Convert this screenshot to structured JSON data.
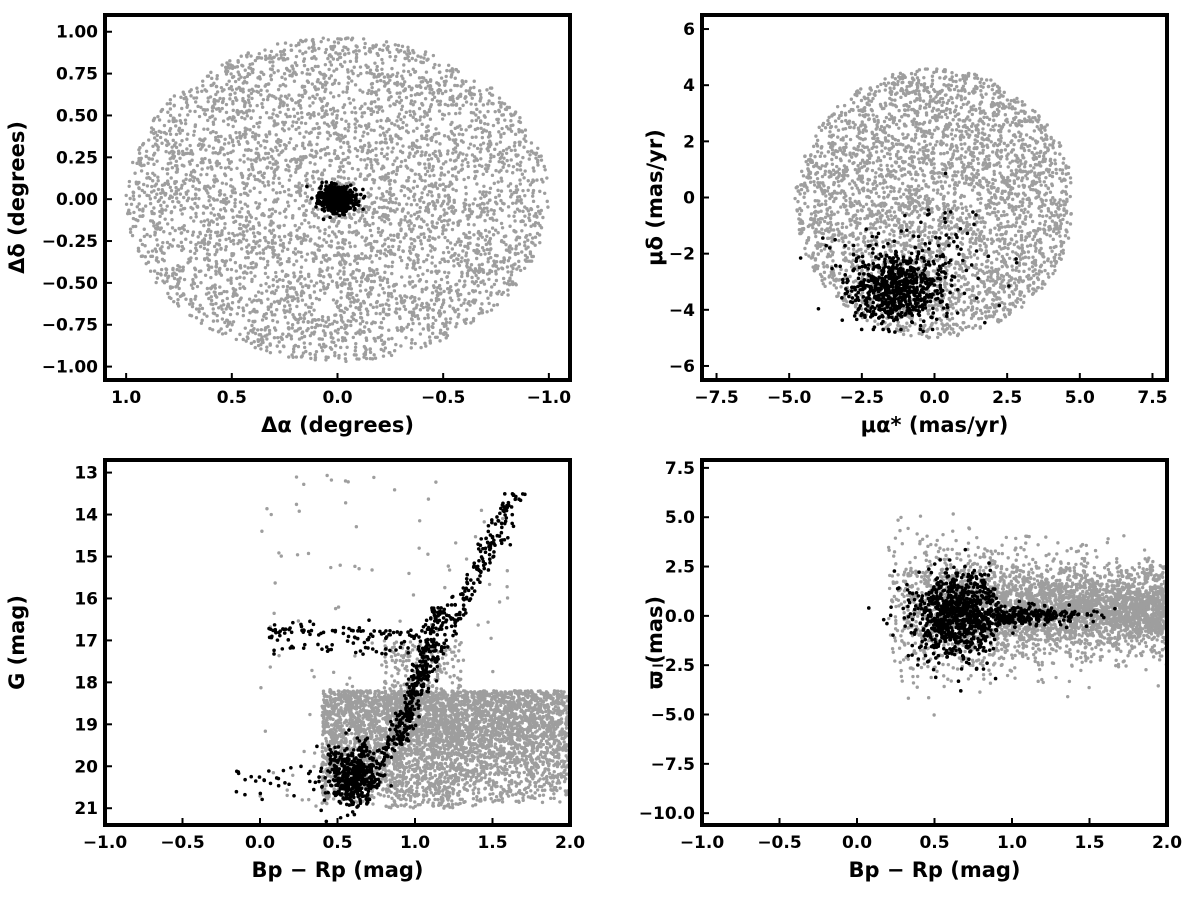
{
  "chart_data": [
    {
      "type": "scatter",
      "xlabel": "Δα (degrees)",
      "ylabel": "Δδ (degrees)",
      "xlim": [
        1.1,
        -1.1
      ],
      "ylim": [
        -1.08,
        1.1
      ],
      "xticks": [
        "1.0",
        "0.5",
        "0.0",
        "−0.5",
        "−1.0"
      ],
      "xtick_values": [
        1.0,
        0.5,
        0.0,
        -0.5,
        -1.0
      ],
      "yticks": [
        "1.00",
        "0.75",
        "0.50",
        "0.25",
        "0.00",
        "−0.25",
        "−0.50",
        "−0.75",
        "−1.00"
      ],
      "ytick_values": [
        1.0,
        0.75,
        0.5,
        0.25,
        0.0,
        -0.25,
        -0.5,
        -0.75,
        -1.0
      ],
      "series": [
        {
          "color": "#9e9e9e",
          "distribution": "uniform disk",
          "center": [
            0,
            0
          ],
          "radius": 1.0,
          "count": 4500
        },
        {
          "color": "#000000",
          "distribution": "compact cluster",
          "center": [
            0,
            0
          ],
          "spread": [
            0.05,
            0.04
          ],
          "count": 700
        }
      ]
    },
    {
      "type": "scatter",
      "xlabel": "μα* (mas/yr)",
      "ylabel": "μδ (mas/yr)",
      "xlim": [
        -8,
        8
      ],
      "ylim": [
        -6.5,
        6.5
      ],
      "xticks": [
        "−7.5",
        "−5.0",
        "−2.5",
        "0.0",
        "2.5",
        "5.0",
        "7.5"
      ],
      "xtick_values": [
        -7.5,
        -5.0,
        -2.5,
        0.0,
        2.5,
        5.0,
        7.5
      ],
      "yticks": [
        "6",
        "4",
        "2",
        "0",
        "−2",
        "−4",
        "−6"
      ],
      "ytick_values": [
        6,
        4,
        2,
        0,
        -2,
        -4,
        -6
      ],
      "series": [
        {
          "color": "#9e9e9e",
          "distribution": "disk",
          "center": [
            0,
            -0.2
          ],
          "radius": 4.8,
          "count": 3500
        },
        {
          "color": "#000000",
          "distribution": "cluster",
          "center": [
            -1.3,
            -3.3
          ],
          "spread": [
            0.8,
            0.6
          ],
          "count": 900
        }
      ]
    },
    {
      "type": "scatter",
      "xlabel": "Bp − Rp (mag)",
      "ylabel": "G (mag)",
      "xlim": [
        -1.0,
        2.0
      ],
      "ylim": [
        21.4,
        12.7
      ],
      "xticks": [
        "−1.0",
        "−0.5",
        "0.0",
        "0.5",
        "1.0",
        "1.5",
        "2.0"
      ],
      "xtick_values": [
        -1.0,
        -0.5,
        0.0,
        0.5,
        1.0,
        1.5,
        2.0
      ],
      "yticks": [
        "21",
        "20",
        "19",
        "18",
        "17",
        "16",
        "15",
        "14",
        "13"
      ],
      "ytick_values": [
        21,
        20,
        19,
        18,
        17,
        16,
        15,
        14,
        13
      ],
      "series": [
        {
          "color": "#9e9e9e",
          "distribution": "field stars",
          "count": 4500
        },
        {
          "color": "#000000",
          "distribution": "cluster sequence (main sequence, giant branch, horizontal branch)",
          "count": 1200
        }
      ]
    },
    {
      "type": "scatter",
      "xlabel": "Bp − Rp (mag)",
      "ylabel": "ϖ (mas)",
      "xlim": [
        -1.0,
        2.0
      ],
      "ylim": [
        -10.6,
        7.9
      ],
      "xticks": [
        "−1.0",
        "−0.5",
        "0.0",
        "0.5",
        "1.0",
        "1.5",
        "2.0"
      ],
      "xtick_values": [
        -1.0,
        -0.5,
        0.0,
        0.5,
        1.0,
        1.5,
        2.0
      ],
      "yticks": [
        "7.5",
        "5.0",
        "2.5",
        "0.0",
        "−2.5",
        "−5.0",
        "−7.5",
        "−10.0"
      ],
      "ytick_values": [
        7.5,
        5.0,
        2.5,
        0.0,
        -2.5,
        -5.0,
        -7.5,
        -10.0
      ],
      "series": [
        {
          "color": "#9e9e9e",
          "distribution": "field stars",
          "count": 3500
        },
        {
          "color": "#000000",
          "distribution": "cluster",
          "count": 1100
        }
      ]
    }
  ]
}
